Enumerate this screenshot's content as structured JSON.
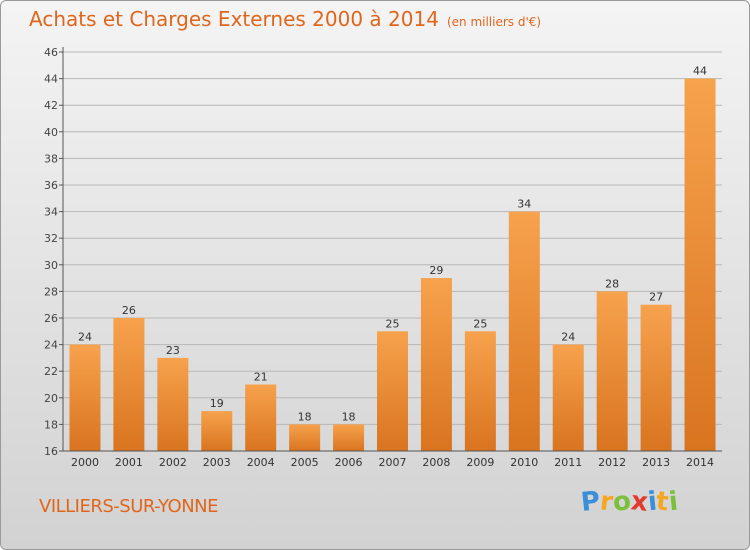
{
  "title": "Achats et Charges Externes 2000 à 2014",
  "subtitle": "(en milliers d'€)",
  "commune": "VILLIERS-SUR-YONNE",
  "logo": {
    "letters": [
      "P",
      "r",
      "o",
      "x",
      "i",
      "t",
      "i"
    ],
    "colors": [
      "#3a8fd8",
      "#f5a623",
      "#7bbf3a",
      "#e23a2c",
      "#3a8fd8",
      "#f5a623",
      "#7bbf3a"
    ]
  },
  "colors": {
    "accent": "#e0661c",
    "bar_top": "#f7a24d",
    "bar_bottom": "#d9741f"
  },
  "chart_data": {
    "type": "bar",
    "categories": [
      "2000",
      "2001",
      "2002",
      "2003",
      "2004",
      "2005",
      "2006",
      "2007",
      "2008",
      "2009",
      "2010",
      "2011",
      "2012",
      "2013",
      "2014"
    ],
    "values": [
      24,
      26,
      23,
      19,
      21,
      18,
      18,
      25,
      29,
      25,
      34,
      24,
      28,
      27,
      44
    ],
    "ylim": [
      16,
      46
    ],
    "yticks": [
      16,
      18,
      20,
      22,
      24,
      26,
      28,
      30,
      32,
      34,
      36,
      38,
      40,
      42,
      44,
      46
    ],
    "grid": true
  }
}
